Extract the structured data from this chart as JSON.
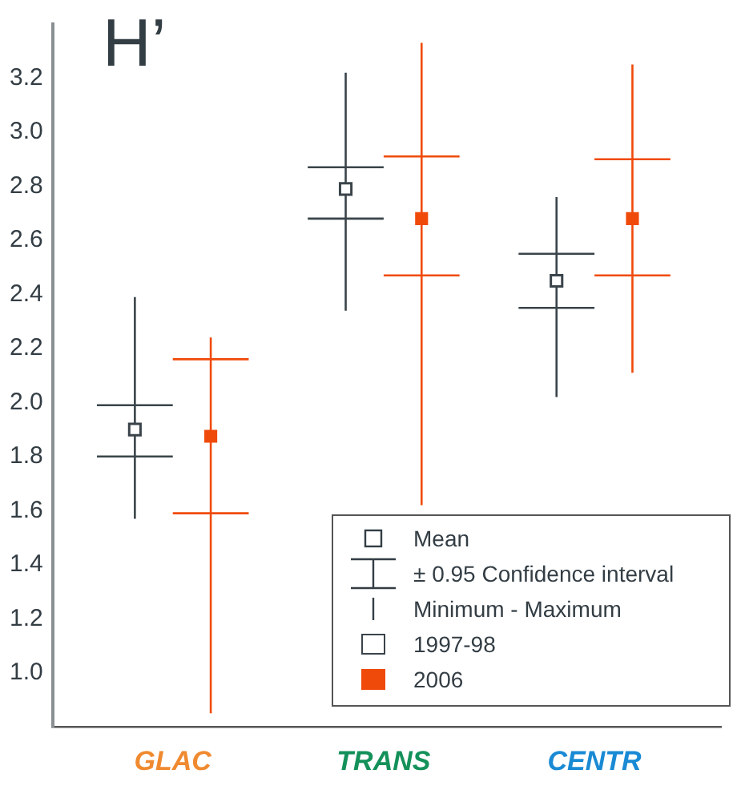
{
  "chart_data": {
    "type": "box",
    "title": "H’",
    "categories": [
      "GLAC",
      "TRANS",
      "CENTR"
    ],
    "ylim": [
      0.8,
      3.4
    ],
    "yticks": [
      {
        "value": 1,
        "label": "1.0"
      },
      {
        "value": 1.2,
        "label": "1.2"
      },
      {
        "value": 1.4,
        "label": "1.4"
      },
      {
        "value": 1.6,
        "label": "1.6"
      },
      {
        "value": 1.8,
        "label": "1.8"
      },
      {
        "value": 2,
        "label": "2.0"
      },
      {
        "value": 2.2,
        "label": "2.2"
      },
      {
        "value": 2.4,
        "label": "2.4"
      },
      {
        "value": 2.6,
        "label": "2.6"
      },
      {
        "value": 2.8,
        "label": "2.8"
      },
      {
        "value": 3,
        "label": "3.0"
      },
      {
        "value": 3.2,
        "label": "3.2"
      }
    ],
    "series": [
      {
        "name": "1997-98",
        "color": "#3a444a",
        "boxes": [
          {
            "low": 1.57,
            "q1": 1.8,
            "q3": 1.99,
            "high": 2.39,
            "mean": 1.9
          },
          {
            "low": 2.34,
            "q1": 2.68,
            "q3": 2.87,
            "high": 3.22,
            "mean": 2.79
          },
          {
            "low": 2.02,
            "q1": 2.35,
            "q3": 2.55,
            "high": 2.76,
            "mean": 2.45
          }
        ]
      },
      {
        "name": "2006",
        "color": "#f04a0a",
        "boxes": [
          {
            "low": 0.85,
            "q1": 1.59,
            "q3": 2.16,
            "high": 2.24,
            "mean": 1.875
          },
          {
            "low": 1.62,
            "q1": 2.47,
            "q3": 2.91,
            "high": 3.33,
            "mean": 2.68
          },
          {
            "low": 2.11,
            "q1": 2.47,
            "q3": 2.9,
            "high": 3.25,
            "mean": 2.68
          }
        ]
      }
    ],
    "marker": "square",
    "legend": "bottom right",
    "annotations": [
      "Mean",
      "± 0.95 Confidence interval",
      "Minimum - Maximum"
    ]
  }
}
